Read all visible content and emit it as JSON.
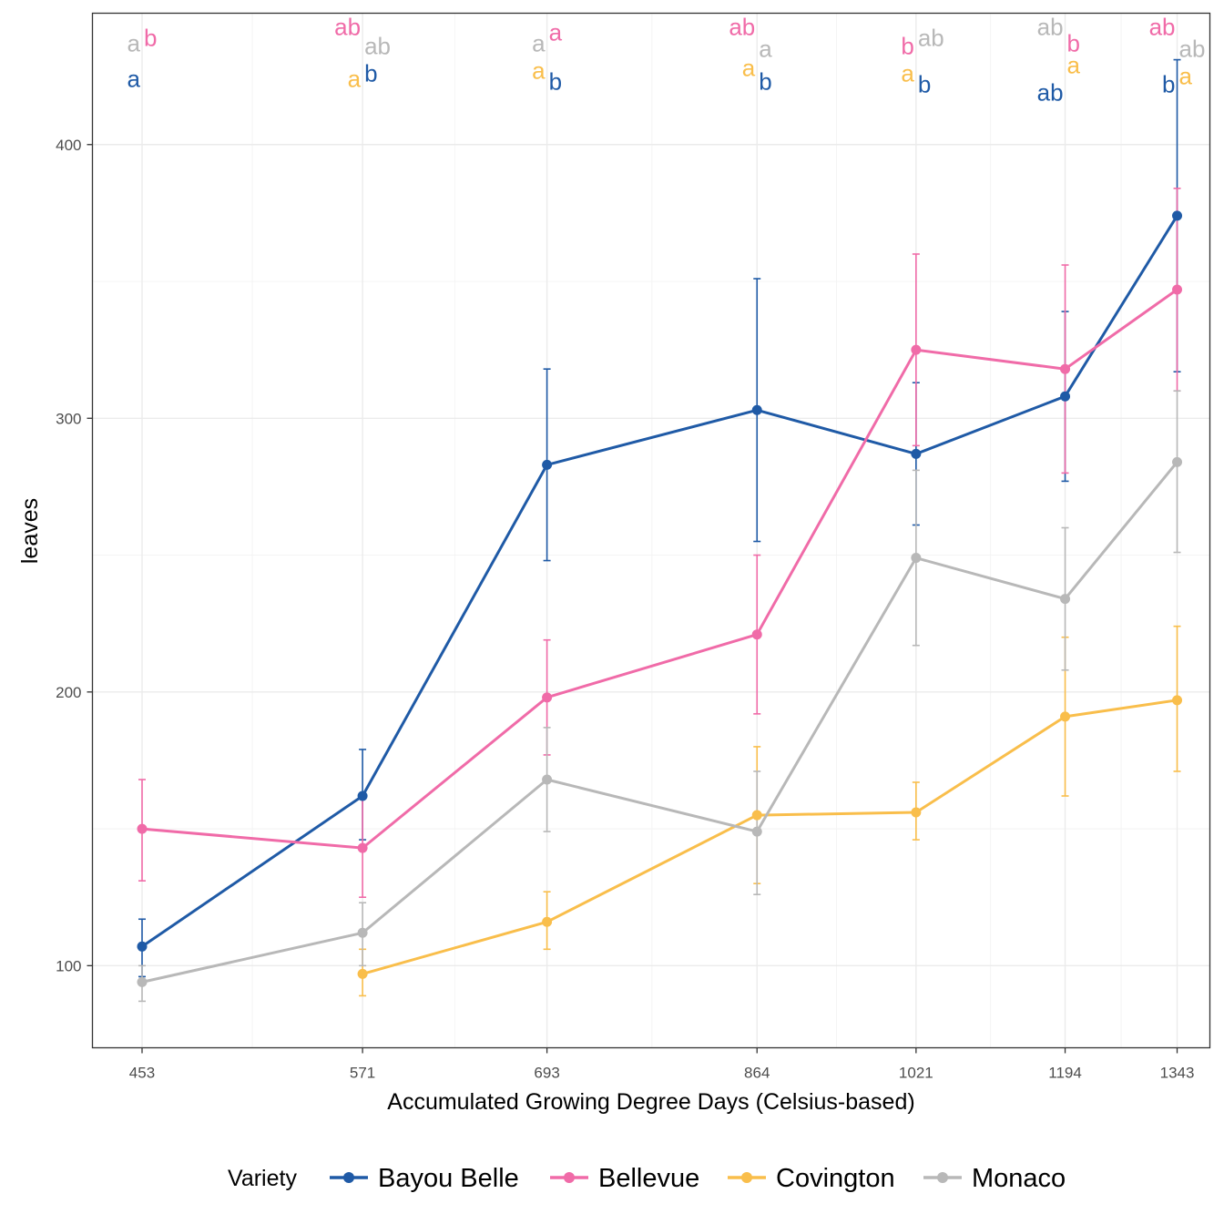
{
  "chart_data": {
    "type": "line",
    "title": "",
    "xlabel": "Accumulated Growing Degree Days (Celsius-based)",
    "ylabel": "leaves",
    "x": [
      453,
      571,
      693,
      864,
      1021,
      1194,
      1343
    ],
    "x_tick_labels": [
      "453",
      "571",
      "693",
      "864",
      "1021",
      "1194",
      "1343"
    ],
    "x_scale": "log",
    "xlim": [
      430,
      1390
    ],
    "ylim": [
      70,
      448
    ],
    "y_ticks": [
      100,
      200,
      300,
      400
    ],
    "y_tick_labels": [
      "100",
      "200",
      "300",
      "400"
    ],
    "grid": true,
    "legend_title": "Variety",
    "legend_position": "bottom",
    "series": [
      {
        "name": "Bayou Belle",
        "color": "#1f5aa6",
        "x": [
          453,
          571,
          693,
          864,
          1021,
          1194,
          1343
        ],
        "values": [
          107,
          162,
          283,
          303,
          287,
          308,
          374
        ],
        "lower": [
          96,
          146,
          248,
          255,
          261,
          277,
          317
        ],
        "upper": [
          117,
          179,
          318,
          351,
          313,
          339,
          431
        ],
        "letters": [
          "a",
          "b",
          "b",
          "b",
          "b",
          "ab",
          "b"
        ],
        "letter_y": [
          421,
          423,
          420,
          420,
          419,
          416,
          419
        ],
        "letter_side": [
          "left",
          "right",
          "right",
          "right",
          "right",
          "left",
          "left"
        ]
      },
      {
        "name": "Bellevue",
        "color": "#f06ba8",
        "x": [
          453,
          571,
          693,
          864,
          1021,
          1194,
          1343
        ],
        "values": [
          150,
          143,
          198,
          221,
          325,
          318,
          347
        ],
        "lower": [
          131,
          125,
          177,
          192,
          290,
          280,
          310
        ],
        "upper": [
          168,
          161,
          219,
          250,
          360,
          356,
          384
        ],
        "letters": [
          "b",
          "ab",
          "a",
          "ab",
          "b",
          "b",
          "ab"
        ],
        "letter_y": [
          436,
          440,
          438,
          440,
          433,
          434,
          440
        ],
        "letter_side": [
          "right",
          "left",
          "right",
          "left",
          "left",
          "right",
          "left"
        ]
      },
      {
        "name": "Covington",
        "color": "#f9be4b",
        "x": [
          571,
          693,
          864,
          1021,
          1194,
          1343
        ],
        "values": [
          97,
          116,
          155,
          156,
          191,
          197
        ],
        "lower": [
          89,
          106,
          130,
          146,
          162,
          171
        ],
        "upper": [
          106,
          127,
          180,
          167,
          220,
          224
        ],
        "letters": [
          "a",
          "a",
          "a",
          "a",
          "a",
          "a"
        ],
        "letter_y": [
          421,
          424,
          425,
          423,
          426,
          422
        ],
        "letter_side": [
          "left",
          "left",
          "left",
          "left",
          "right",
          "right"
        ]
      },
      {
        "name": "Monaco",
        "color": "#b8b8b8",
        "x": [
          453,
          571,
          693,
          864,
          1021,
          1194,
          1343
        ],
        "values": [
          94,
          112,
          168,
          149,
          249,
          234,
          284
        ],
        "lower": [
          87,
          100,
          149,
          126,
          217,
          208,
          251
        ],
        "upper": [
          100,
          123,
          187,
          171,
          281,
          260,
          310
        ],
        "letters": [
          "a",
          "ab",
          "a",
          "a",
          "ab",
          "ab",
          "ab"
        ],
        "letter_y": [
          434,
          433,
          434,
          432,
          436,
          440,
          432
        ],
        "letter_side": [
          "left",
          "right",
          "left",
          "right",
          "right",
          "left",
          "right"
        ]
      }
    ]
  }
}
